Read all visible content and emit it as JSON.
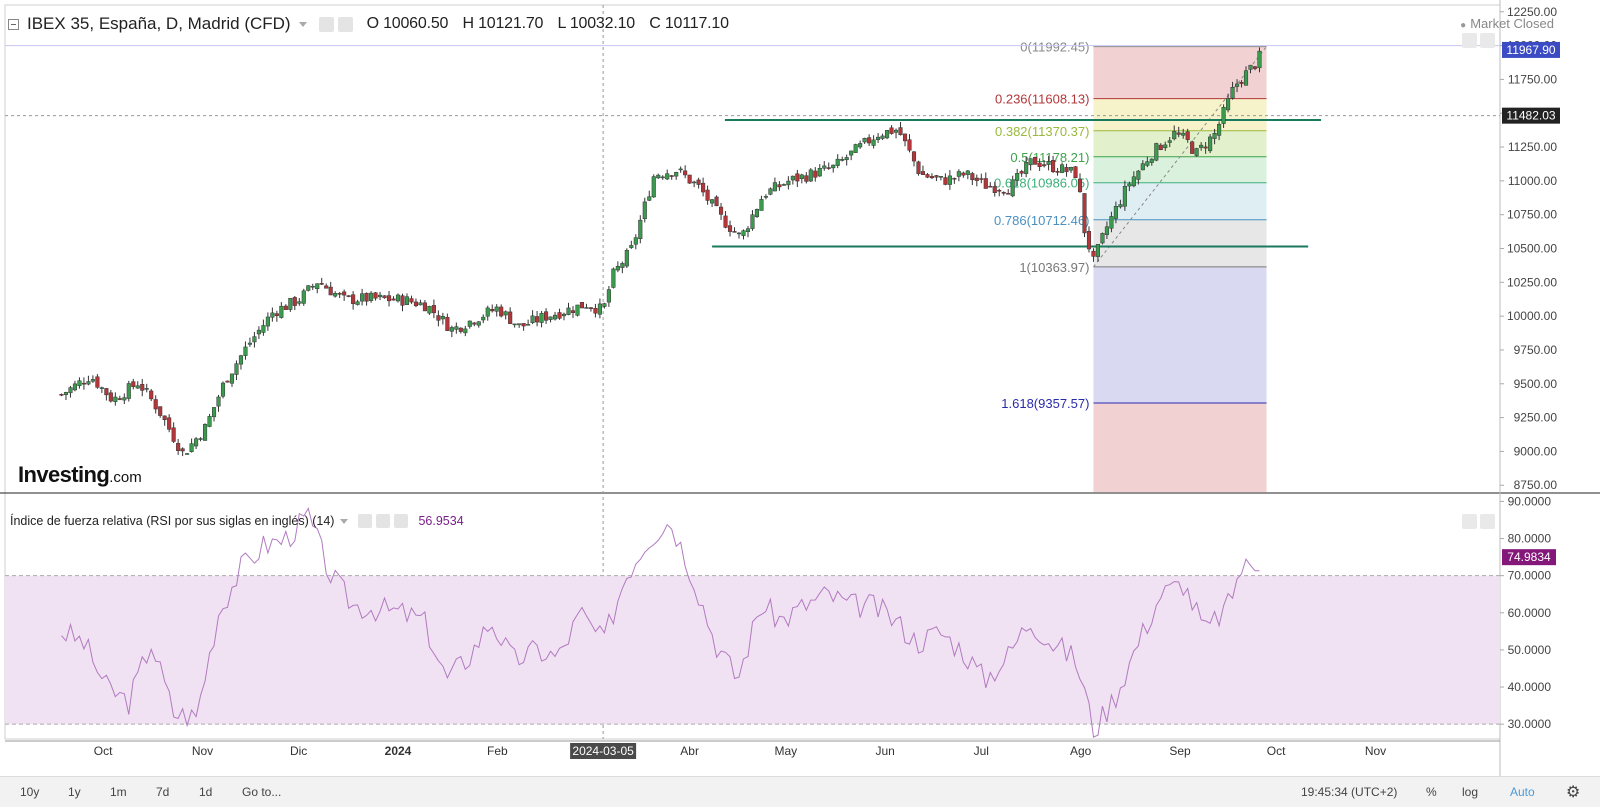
{
  "header": {
    "title": "IBEX 35, España, D, Madrid (CFD)",
    "open": "O 10060.50",
    "high": "H 10121.70",
    "low": "L 10032.10",
    "close": "C 10117.10",
    "market_status": "Market Closed"
  },
  "rsi_legend": {
    "label": "Índice de fuerza relativa (RSI por sus siglas en inglés) (14)",
    "value": "56.9534"
  },
  "logo": {
    "main": "Investing",
    "suffix": ".com"
  },
  "toolbar": {
    "ranges": [
      "10y",
      "1y",
      "1m",
      "7d",
      "1d"
    ],
    "goto": "Go to...",
    "time": "19:45:34 (UTC+2)",
    "percent": "%",
    "log": "log",
    "auto": "Auto"
  },
  "colors": {
    "up": "#3c9a4f",
    "down": "#b3373a",
    "wick": "#333333",
    "support": "#1a7a5e",
    "rsi_line": "#b27ac0",
    "rsi_band": "#f0e2f2",
    "price_label": "#3b4bc4",
    "rsi_label": "#84187a"
  },
  "chart_data": [
    {
      "type": "candlestick",
      "title": "IBEX 35, España, D, Madrid (CFD)",
      "x_ticks": [
        "Oct",
        "Nov",
        "Dic",
        "2024",
        "Feb",
        "2024-03-05",
        "Abr",
        "May",
        "Jun",
        "Jul",
        "Ago",
        "Sep",
        "Oct",
        "Nov"
      ],
      "y_ticks": [
        12250.0,
        12000.0,
        11750.0,
        11500.0,
        11250.0,
        11000.0,
        10750.0,
        10500.0,
        10250.0,
        10000.0,
        9750.0,
        9500.0,
        9250.0,
        9000.0,
        8750.0
      ],
      "ylim": [
        8700,
        12300
      ],
      "last_price": "11967.90",
      "crosshair_price": "11482.03",
      "crosshair_date": "2024-03-05",
      "close_path": [
        [
          "2023-09-18",
          9420
        ],
        [
          "2023-09-27",
          9560
        ],
        [
          "2023-10-04",
          9380
        ],
        [
          "2023-10-12",
          9510
        ],
        [
          "2023-10-18",
          9320
        ],
        [
          "2023-10-26",
          8980
        ],
        [
          "2023-11-02",
          9180
        ],
        [
          "2023-11-08",
          9520
        ],
        [
          "2023-11-15",
          9780
        ],
        [
          "2023-11-23",
          10030
        ],
        [
          "2023-12-01",
          10120
        ],
        [
          "2023-12-07",
          10260
        ],
        [
          "2023-12-15",
          10120
        ],
        [
          "2023-12-22",
          10130
        ],
        [
          "2024-01-03",
          10120
        ],
        [
          "2024-01-10",
          10080
        ],
        [
          "2024-01-18",
          9900
        ],
        [
          "2024-01-25",
          9980
        ],
        [
          "2024-02-01",
          10060
        ],
        [
          "2024-02-08",
          9920
        ],
        [
          "2024-02-15",
          9990
        ],
        [
          "2024-02-22",
          10040
        ],
        [
          "2024-02-29",
          10090
        ],
        [
          "2024-03-05",
          10040
        ],
        [
          "2024-03-08",
          10300
        ],
        [
          "2024-03-14",
          10500
        ],
        [
          "2024-03-21",
          11050
        ],
        [
          "2024-03-28",
          11080
        ],
        [
          "2024-04-04",
          10950
        ],
        [
          "2024-04-11",
          10720
        ],
        [
          "2024-04-17",
          10580
        ],
        [
          "2024-04-24",
          10900
        ],
        [
          "2024-05-02",
          11000
        ],
        [
          "2024-05-09",
          11050
        ],
        [
          "2024-05-16",
          11100
        ],
        [
          "2024-05-23",
          11230
        ],
        [
          "2024-05-30",
          11350
        ],
        [
          "2024-06-05",
          11380
        ],
        [
          "2024-06-12",
          11050
        ],
        [
          "2024-06-19",
          11000
        ],
        [
          "2024-06-26",
          11050
        ],
        [
          "2024-07-03",
          10960
        ],
        [
          "2024-07-10",
          10950
        ],
        [
          "2024-07-17",
          11150
        ],
        [
          "2024-07-24",
          11100
        ],
        [
          "2024-07-31",
          11050
        ],
        [
          "2024-08-02",
          10650
        ],
        [
          "2024-08-05",
          10400
        ],
        [
          "2024-08-09",
          10650
        ],
        [
          "2024-08-16",
          10980
        ],
        [
          "2024-08-23",
          11200
        ],
        [
          "2024-08-30",
          11350
        ],
        [
          "2024-09-03",
          11300
        ],
        [
          "2024-09-06",
          11200
        ],
        [
          "2024-09-12",
          11350
        ],
        [
          "2024-09-18",
          11700
        ],
        [
          "2024-09-25",
          11880
        ],
        [
          "2024-09-27",
          11967.9
        ]
      ],
      "last_candle": {
        "open": 10060.5,
        "high": 10121.7,
        "low": 10032.1,
        "close": 10117.1
      }
    },
    {
      "type": "fibonacci_retracement",
      "start_date": "2024-08-05",
      "end_date": "2024-09-28",
      "levels": [
        {
          "label": "0(11992.45)",
          "ratio": 0,
          "price": 11992.45,
          "color": "#888888",
          "fill": "#eec9ca"
        },
        {
          "label": "0.236(11608.13)",
          "ratio": 0.236,
          "price": 11608.13,
          "color": "#b3373a",
          "fill": "#f5f0c0"
        },
        {
          "label": "0.382(11370.37)",
          "ratio": 0.382,
          "price": 11370.37,
          "color": "#9ab83b",
          "fill": "#ddefc2"
        },
        {
          "label": "0.5(11178.21)",
          "ratio": 0.5,
          "price": 11178.21,
          "color": "#3da24a",
          "fill": "#d3efd8"
        },
        {
          "label": "0.618(10986.05)",
          "ratio": 0.618,
          "price": 10986.05,
          "color": "#3cb07a",
          "fill": "#d8ebf1"
        },
        {
          "label": "0.786(10712.46)",
          "ratio": 0.786,
          "price": 10712.46,
          "color": "#4a90c2",
          "fill": "#e3e3e3"
        },
        {
          "label": "1(10363.97)",
          "ratio": 1,
          "price": 10363.97,
          "color": "#777777",
          "fill": "#d2d2f0"
        },
        {
          "label": "1.618(9357.57)",
          "ratio": 1.618,
          "price": 9357.57,
          "color": "#2a2ab0",
          "fill": "#eec9ca"
        }
      ]
    },
    {
      "type": "horizontal_lines",
      "lines": [
        {
          "price": 11450,
          "from": "2024-04-12",
          "to": "2024-10-15"
        },
        {
          "price": 10515,
          "from": "2024-04-08",
          "to": "2024-10-11"
        }
      ]
    },
    {
      "type": "line",
      "title": "Índice de fuerza relativa (RSI por sus siglas en inglés) (14)",
      "y_ticks": [
        90.0,
        80.0,
        70.0,
        60.0,
        50.0,
        40.0,
        30.0
      ],
      "ylim": [
        26,
        92
      ],
      "band": [
        30,
        70
      ],
      "last_value": "74.9834",
      "series": [
        [
          "2023-09-18",
          55
        ],
        [
          "2023-09-25",
          52
        ],
        [
          "2023-10-02",
          40
        ],
        [
          "2023-10-09",
          36
        ],
        [
          "2023-10-16",
          52
        ],
        [
          "2023-10-23",
          33
        ],
        [
          "2023-10-30",
          32
        ],
        [
          "2023-11-06",
          60
        ],
        [
          "2023-11-13",
          72
        ],
        [
          "2023-11-20",
          78
        ],
        [
          "2023-11-27",
          80
        ],
        [
          "2023-12-04",
          86
        ],
        [
          "2023-12-11",
          70
        ],
        [
          "2023-12-18",
          62
        ],
        [
          "2023-12-26",
          61
        ],
        [
          "2024-01-02",
          60
        ],
        [
          "2024-01-09",
          58
        ],
        [
          "2024-01-16",
          42
        ],
        [
          "2024-01-23",
          48
        ],
        [
          "2024-01-30",
          58
        ],
        [
          "2024-02-06",
          47
        ],
        [
          "2024-02-13",
          50
        ],
        [
          "2024-02-20",
          48
        ],
        [
          "2024-02-27",
          60
        ],
        [
          "2024-03-05",
          52
        ],
        [
          "2024-03-12",
          70
        ],
        [
          "2024-03-19",
          80
        ],
        [
          "2024-03-26",
          85
        ],
        [
          "2024-04-02",
          70
        ],
        [
          "2024-04-09",
          52
        ],
        [
          "2024-04-16",
          42
        ],
        [
          "2024-04-23",
          62
        ],
        [
          "2024-04-30",
          58
        ],
        [
          "2024-05-07",
          62
        ],
        [
          "2024-05-14",
          65
        ],
        [
          "2024-05-21",
          62
        ],
        [
          "2024-05-28",
          62
        ],
        [
          "2024-06-04",
          58
        ],
        [
          "2024-06-11",
          52
        ],
        [
          "2024-06-18",
          55
        ],
        [
          "2024-06-25",
          50
        ],
        [
          "2024-07-02",
          42
        ],
        [
          "2024-07-09",
          48
        ],
        [
          "2024-07-16",
          58
        ],
        [
          "2024-07-23",
          52
        ],
        [
          "2024-07-30",
          48
        ],
        [
          "2024-08-02",
          40
        ],
        [
          "2024-08-05",
          28
        ],
        [
          "2024-08-12",
          38
        ],
        [
          "2024-08-19",
          52
        ],
        [
          "2024-08-26",
          65
        ],
        [
          "2024-09-02",
          68
        ],
        [
          "2024-09-09",
          55
        ],
        [
          "2024-09-16",
          62
        ],
        [
          "2024-09-20",
          72
        ],
        [
          "2024-09-24",
          73
        ],
        [
          "2024-09-27",
          75
        ]
      ]
    }
  ]
}
